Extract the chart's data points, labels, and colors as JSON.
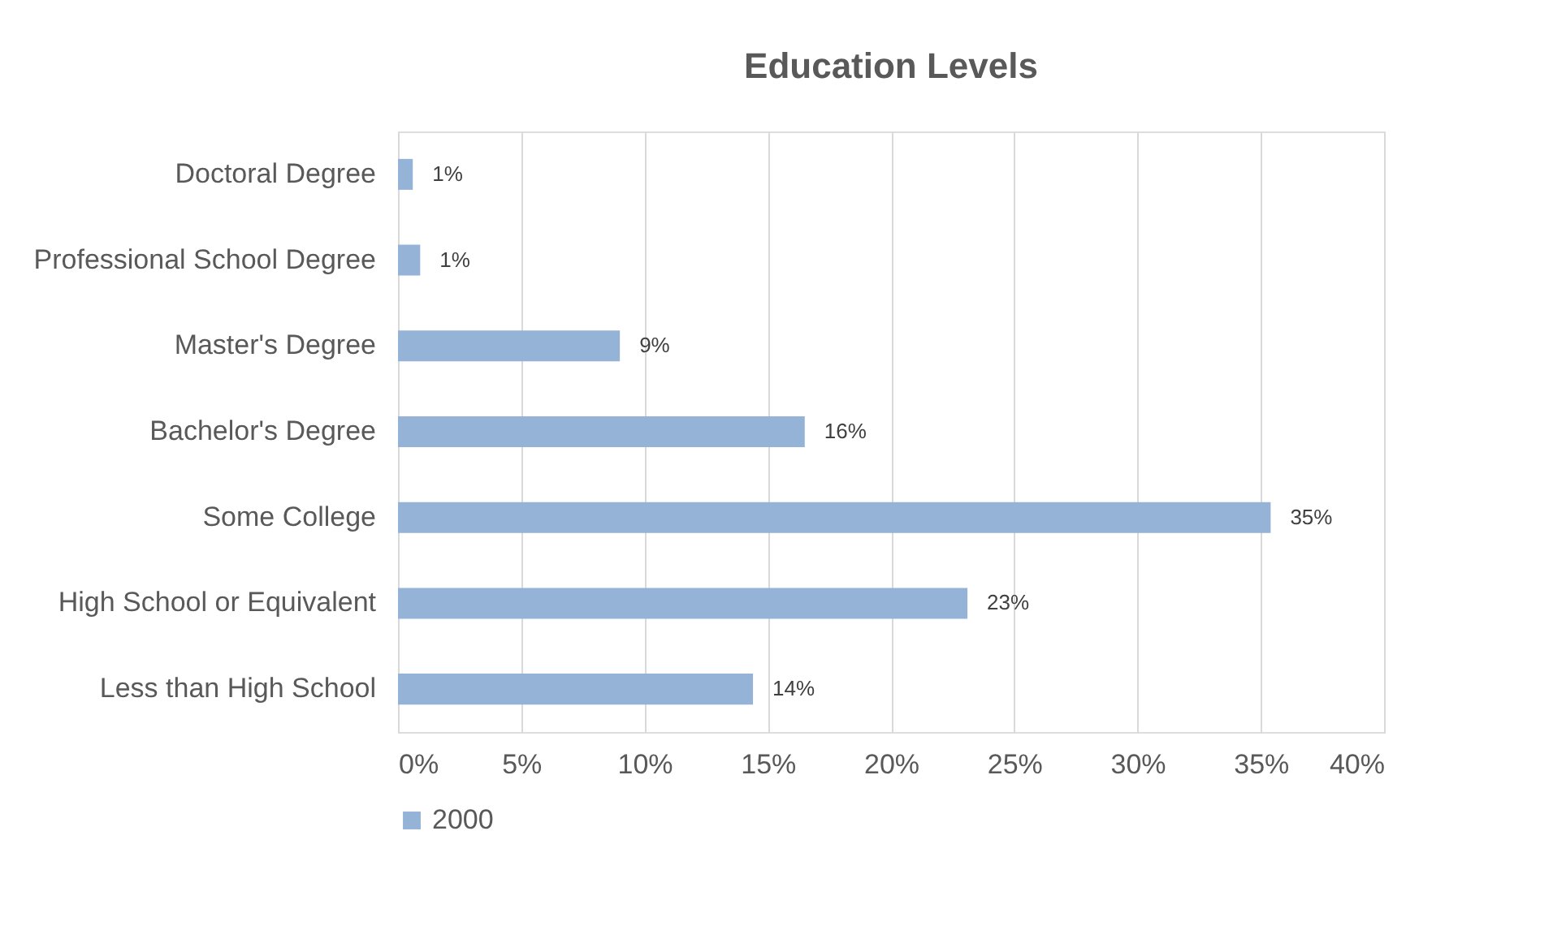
{
  "chart_data": {
    "type": "bar",
    "orientation": "horizontal",
    "title": "Education Levels",
    "categories": [
      "Doctoral Degree",
      "Professional School Degree",
      "Master's Degree",
      "Bachelor's Degree",
      "Some College",
      "High School or Equivalent",
      "Less than High School"
    ],
    "series": [
      {
        "name": "2000",
        "color": "#95b3d7",
        "values": [
          0.6,
          0.9,
          9.0,
          16.5,
          35.4,
          23.1,
          14.4
        ],
        "value_labels": [
          "1%",
          "1%",
          "9%",
          "16%",
          "35%",
          "23%",
          "14%"
        ]
      }
    ],
    "xlim": [
      0,
      40
    ],
    "xticks": [
      {
        "value": 0,
        "label": "0%"
      },
      {
        "value": 5,
        "label": "5%"
      },
      {
        "value": 10,
        "label": "10%"
      },
      {
        "value": 15,
        "label": "15%"
      },
      {
        "value": 20,
        "label": "20%"
      },
      {
        "value": 25,
        "label": "25%"
      },
      {
        "value": 30,
        "label": "30%"
      },
      {
        "value": 35,
        "label": "35%"
      },
      {
        "value": 40,
        "label": "40%"
      }
    ],
    "grid": "x",
    "legend": "bottom"
  }
}
